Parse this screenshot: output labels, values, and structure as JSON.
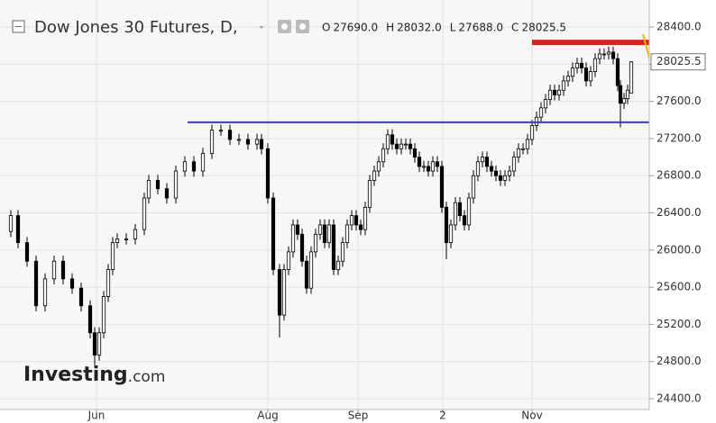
{
  "chart_data": {
    "type": "candlestick",
    "title": "Dow Jones 30 Futures, D,",
    "ohlc_keys": [
      "O",
      "H",
      "L",
      "C"
    ],
    "ohlc_values": [
      {
        "value": 27690,
        "label": "27690.0"
      },
      {
        "value": 28032,
        "label": "28032.0"
      },
      {
        "value": 27688,
        "label": "27688.0"
      },
      {
        "value": 28025.5,
        "label": "28025.5"
      }
    ],
    "last_price": {
      "value": 28025.5,
      "label": "28025.5"
    },
    "watermark": "Investing",
    "watermark_suffix": ".com",
    "up_color": "#ffffff",
    "down_color": "#000000",
    "grid": true,
    "x": [
      0.4,
      2,
      4,
      6,
      8,
      10,
      12,
      14,
      16,
      18,
      19,
      20,
      21,
      22,
      23,
      24,
      26,
      28,
      30,
      31,
      33,
      35,
      37,
      39,
      41,
      43,
      45,
      47,
      49,
      51,
      53,
      55,
      56,
      57.4,
      58.6,
      60,
      61,
      62,
      63,
      64,
      65,
      66,
      67,
      68,
      69,
      70,
      71,
      72,
      73,
      74,
      75,
      76,
      77,
      78,
      79,
      80,
      81,
      82,
      83,
      84,
      85,
      86,
      87,
      88,
      89,
      90,
      91,
      92,
      93,
      94,
      95,
      96,
      97,
      98,
      99,
      100,
      101,
      102,
      103,
      104,
      105,
      106,
      107,
      108,
      109,
      110,
      111,
      112,
      113,
      114,
      115,
      116,
      117,
      118,
      119,
      120,
      121,
      122,
      123,
      124,
      125,
      126,
      127,
      128,
      129,
      130,
      131,
      132,
      133,
      134,
      135,
      135.6,
      136.4,
      137.2,
      138
    ],
    "open": [
      26200,
      26370,
      26080,
      25880,
      25400,
      25690,
      25880,
      25690,
      25590,
      25400,
      25110,
      24870,
      25110,
      25500,
      25790,
      26080,
      26120,
      26120,
      26220,
      26560,
      26750,
      26660,
      26560,
      26850,
      26950,
      26850,
      27040,
      27290,
      27290,
      27190,
      27190,
      27140,
      27190,
      27090,
      26560,
      25790,
      25300,
      25790,
      25980,
      26270,
      26170,
      25880,
      25590,
      25980,
      26170,
      26270,
      26080,
      26270,
      25790,
      25880,
      26080,
      26270,
      26370,
      26270,
      26220,
      26460,
      26750,
      26850,
      26950,
      27090,
      27240,
      27140,
      27090,
      27140,
      27140,
      27090,
      27000,
      26900,
      26900,
      26850,
      26950,
      26900,
      26460,
      26080,
      26270,
      26510,
      26370,
      26270,
      26560,
      26800,
      26950,
      27000,
      26900,
      26850,
      26800,
      26750,
      26800,
      26850,
      27000,
      27090,
      27090,
      27190,
      27340,
      27430,
      27530,
      27620,
      27720,
      27670,
      27720,
      27820,
      27870,
      27960,
      28010,
      27960,
      27820,
      27920,
      28060,
      28110,
      28110,
      28130,
      28060,
      27770,
      27580,
      27630,
      27690
    ],
    "high": [
      26430,
      26430,
      26140,
      25940,
      25750,
      25940,
      25940,
      25750,
      25650,
      25460,
      25170,
      25170,
      25560,
      25850,
      26140,
      26180,
      26180,
      26280,
      26620,
      26810,
      26810,
      26720,
      26910,
      27010,
      27010,
      27100,
      27350,
      27350,
      27350,
      27250,
      27250,
      27250,
      27250,
      27150,
      26620,
      25850,
      25850,
      26040,
      26330,
      26330,
      26230,
      25940,
      26040,
      26230,
      26330,
      26330,
      26330,
      26330,
      25940,
      26140,
      26330,
      26430,
      26430,
      26330,
      26520,
      26810,
      26910,
      27010,
      27150,
      27300,
      27300,
      27200,
      27200,
      27200,
      27200,
      27150,
      27060,
      26960,
      26960,
      27010,
      27010,
      26960,
      26520,
      26330,
      26570,
      26570,
      26430,
      26620,
      26860,
      27010,
      27060,
      27060,
      26960,
      26910,
      26860,
      26860,
      26910,
      27060,
      27150,
      27150,
      27250,
      27400,
      27490,
      27590,
      27680,
      27780,
      27780,
      27780,
      27880,
      27930,
      28020,
      28070,
      28070,
      28020,
      27980,
      28120,
      28170,
      28170,
      28190,
      28190,
      28120,
      27830,
      27690,
      27780,
      28032
    ],
    "low": [
      26140,
      26020,
      25820,
      25340,
      25340,
      25630,
      25630,
      25530,
      25340,
      25050,
      24760,
      24810,
      25050,
      25440,
      25730,
      26020,
      26060,
      26060,
      26160,
      26500,
      26600,
      26500,
      26500,
      26790,
      26790,
      26790,
      26980,
      27230,
      27130,
      27130,
      27080,
      27080,
      27030,
      26500,
      25730,
      25060,
      25240,
      25730,
      25920,
      26110,
      25820,
      25530,
      25530,
      25920,
      26110,
      26020,
      26020,
      25730,
      25730,
      25820,
      26020,
      26210,
      26210,
      26160,
      26160,
      26400,
      26690,
      26790,
      26890,
      27030,
      27080,
      27030,
      27030,
      27080,
      27030,
      26940,
      26840,
      26840,
      26790,
      26790,
      26840,
      26400,
      25900,
      26020,
      26210,
      26310,
      26210,
      26210,
      26500,
      26740,
      26890,
      26840,
      26790,
      26740,
      26690,
      26690,
      26740,
      26790,
      26940,
      27030,
      27030,
      27130,
      27280,
      27370,
      27470,
      27560,
      27610,
      27610,
      27660,
      27760,
      27810,
      27900,
      27900,
      27760,
      27760,
      27860,
      28000,
      28050,
      28050,
      28000,
      27710,
      27320,
      27520,
      27570,
      27688
    ],
    "close": [
      26370,
      26080,
      25880,
      25400,
      25690,
      25880,
      25690,
      25590,
      25400,
      25110,
      24870,
      25110,
      25500,
      25790,
      26080,
      26120,
      26120,
      26220,
      26560,
      26750,
      26660,
      26560,
      26850,
      26950,
      26850,
      27040,
      27290,
      27290,
      27190,
      27190,
      27140,
      27190,
      27090,
      26560,
      25790,
      25300,
      25790,
      25980,
      26270,
      26170,
      25880,
      25590,
      25980,
      26170,
      26270,
      26080,
      26270,
      25790,
      25880,
      26080,
      26270,
      26370,
      26270,
      26220,
      26460,
      26750,
      26850,
      26950,
      27090,
      27240,
      27140,
      27090,
      27140,
      27140,
      27090,
      27000,
      26900,
      26900,
      26850,
      26950,
      26900,
      26460,
      26080,
      26270,
      26510,
      26370,
      26270,
      26560,
      26800,
      26950,
      27000,
      26900,
      26850,
      26800,
      26750,
      26800,
      26850,
      27000,
      27090,
      27090,
      27190,
      27340,
      27430,
      27530,
      27620,
      27720,
      27670,
      27720,
      27820,
      27870,
      27960,
      28010,
      27960,
      27820,
      27920,
      28060,
      28110,
      28110,
      28130,
      28060,
      27770,
      27580,
      27630,
      27720,
      28025.5
    ],
    "xlim": [
      0,
      142
    ],
    "xticks": [
      {
        "value": 19.4,
        "label": "Jun"
      },
      {
        "value": 57.4,
        "label": "Aug"
      },
      {
        "value": 77.4,
        "label": "Sep"
      },
      {
        "value": 96.2,
        "label": "2"
      },
      {
        "value": 116,
        "label": "Nov"
      }
    ],
    "ylim": [
      24284,
      28691
    ],
    "yticks": [
      {
        "value": 24400,
        "label": "24400.0"
      },
      {
        "value": 24800,
        "label": "24800.0"
      },
      {
        "value": 25200,
        "label": "25200.0"
      },
      {
        "value": 25600,
        "label": "25600.0"
      },
      {
        "value": 26000,
        "label": "26000.0"
      },
      {
        "value": 26400,
        "label": "26400.0"
      },
      {
        "value": 26800,
        "label": "26800.0"
      },
      {
        "value": 27200,
        "label": "27200.0"
      },
      {
        "value": 27600,
        "label": "27600.0"
      },
      {
        "value": 28000,
        "label": "28000.0"
      },
      {
        "value": 28400,
        "label": "28400.0"
      }
    ],
    "drawn_lines": [
      {
        "color": "#3b3bcc",
        "width": 2,
        "x": [
          39.6,
          142
        ],
        "y": [
          27375,
          27375
        ]
      },
      {
        "color": "#e02020",
        "width": 6,
        "x": [
          116,
          143
        ],
        "y": [
          28235,
          28235
        ]
      },
      {
        "color": "#f0b800",
        "width": 2,
        "x": [
          140.6,
          146
        ],
        "y": [
          28323,
          27335
        ]
      }
    ]
  }
}
